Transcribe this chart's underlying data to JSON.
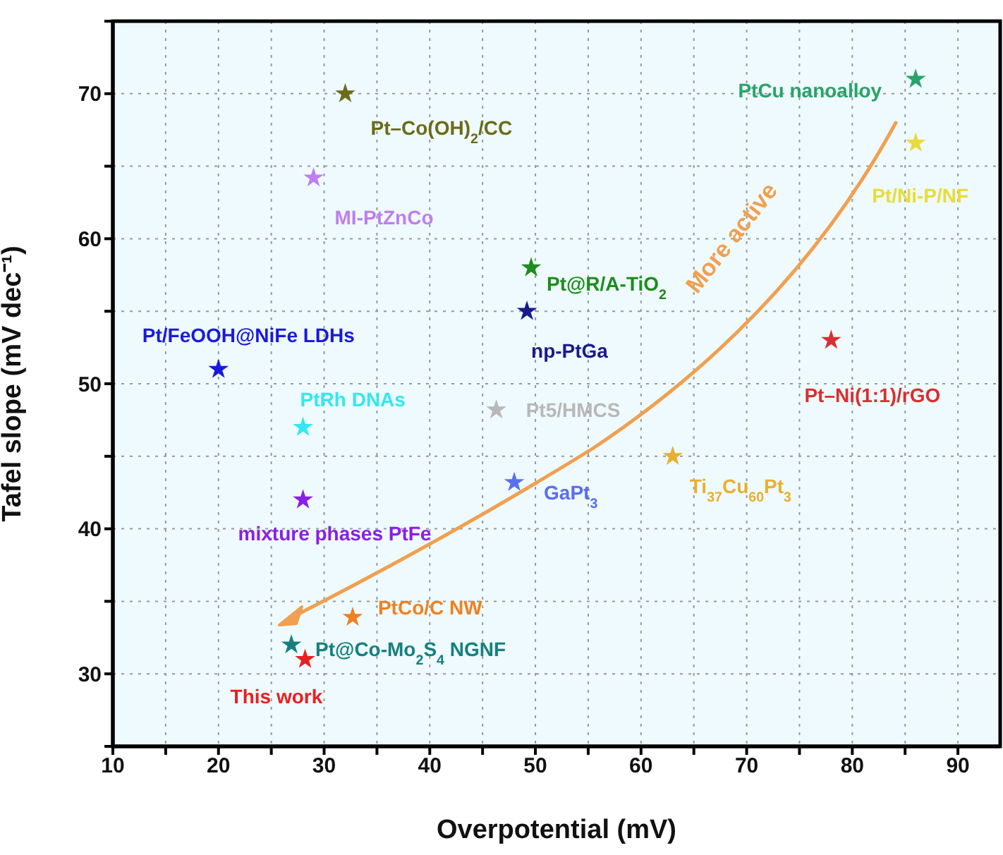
{
  "chart_data": {
    "type": "scatter",
    "xlabel": "Overpotential (mV)",
    "ylabel": "Tafel slope (mV dec⁻¹)",
    "xlim": [
      10,
      94
    ],
    "ylim": [
      25,
      75
    ],
    "xticks": [
      10,
      {
        "value": 15,
        "label": null
      },
      20,
      {
        "value": 25,
        "label": null
      },
      30,
      {
        "value": 35,
        "label": null
      },
      40,
      {
        "value": 45,
        "label": null
      },
      50,
      {
        "value": 55,
        "label": null
      },
      60,
      {
        "value": 65,
        "label": null
      },
      70,
      {
        "value": 75,
        "label": null
      },
      80,
      {
        "value": 85,
        "label": null
      },
      90
    ],
    "yticks": [
      {
        "value": 25,
        "label": null
      },
      30,
      {
        "value": 35,
        "label": null
      },
      40,
      {
        "value": 45,
        "label": null
      },
      50,
      {
        "value": 55,
        "label": null
      },
      60,
      {
        "value": 65,
        "label": null
      },
      70,
      {
        "value": 75,
        "label": null
      }
    ],
    "grid": true,
    "marker": "star",
    "annotations": [
      "More active"
    ],
    "series": [
      {
        "name": "Pt–Co(OH)$_{2}$/CC",
        "color": "#6b6b1a",
        "x": [
          32
        ],
        "values": [
          70
        ]
      },
      {
        "name": "MI-PtZnCo",
        "color": "#c07ef0",
        "x": [
          29
        ],
        "values": [
          64.2
        ]
      },
      {
        "name": "PtCu nanoalloy",
        "color": "#2aa36a",
        "x": [
          86
        ],
        "values": [
          71
        ]
      },
      {
        "name": "Pt/Ni-P/NF",
        "color": "#e8dc3a",
        "x": [
          86
        ],
        "values": [
          66.6
        ]
      },
      {
        "name": "Pt@R/A-TiO$_{2}$",
        "color": "#1e8c1e",
        "x": [
          49.6
        ],
        "values": [
          58
        ]
      },
      {
        "name": "np-PtGa",
        "color": "#1a1a8c",
        "x": [
          49.2
        ],
        "values": [
          55
        ]
      },
      {
        "name": "Pt/FeOOH@NiFe LDHs",
        "color": "#1a1adc",
        "x": [
          20
        ],
        "values": [
          51
        ]
      },
      {
        "name": "PtRh DNAs",
        "color": "#33e8f0",
        "x": [
          28
        ],
        "values": [
          47
        ]
      },
      {
        "name": "Pt5/HMCS",
        "color": "#b8b8b8",
        "x": [
          46.3
        ],
        "values": [
          48.2
        ]
      },
      {
        "name": "mixture phases PtFe",
        "color": "#8b1ee8",
        "x": [
          28
        ],
        "values": [
          42
        ]
      },
      {
        "name": "GaPt$_{3}$",
        "color": "#5a6ef0",
        "x": [
          48
        ],
        "values": [
          43.2
        ]
      },
      {
        "name": "Ti$_{37}$Cu$_{60}$Pt$_{3}$",
        "color": "#e8b030",
        "x": [
          63
        ],
        "values": [
          45
        ]
      },
      {
        "name": "Pt–Ni(1:1)/rGO",
        "color": "#d83030",
        "x": [
          78
        ],
        "values": [
          53
        ]
      },
      {
        "name": "PtCo/C NW",
        "color": "#f08020",
        "x": [
          32.7
        ],
        "values": [
          33.9
        ]
      },
      {
        "name": "Pt@Co-Mo$_{2}$S$_{4}$ NGNF",
        "color": "#168080",
        "x": [
          26.9
        ],
        "values": [
          32
        ]
      },
      {
        "name": "This work",
        "color": "#e82020",
        "x": [
          28.2
        ],
        "values": [
          31
        ]
      }
    ]
  }
}
